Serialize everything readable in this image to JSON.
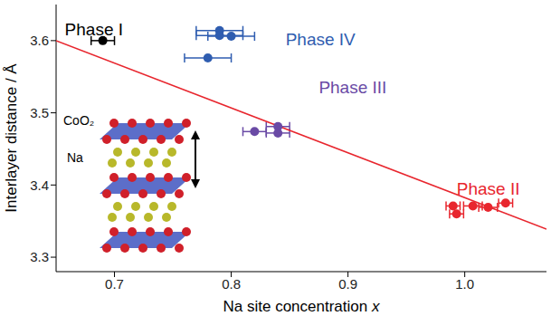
{
  "chart_data": {
    "type": "scatter",
    "xlabel": "Na site concentration x",
    "ylabel": "Interlayer distance / Å",
    "xlim": [
      0.65,
      1.07
    ],
    "ylim": [
      3.28,
      3.65
    ],
    "xticks": [
      0.7,
      0.8,
      0.9,
      {
        "value": 1,
        "label": "1.0"
      }
    ],
    "yticks": [
      3.3,
      3.4,
      3.5,
      3.6
    ],
    "grid": false,
    "series": [
      {
        "name": "Phase I",
        "color": "#000000",
        "marker": "circle",
        "x": [
          0.69
        ],
        "values": [
          3.6
        ],
        "xerr": [
          0.01
        ]
      },
      {
        "name": "Phase IV",
        "color": "#2f5db0",
        "marker": "circle",
        "x": [
          0.79,
          0.79,
          0.8,
          0.78
        ],
        "values": [
          3.614,
          3.607,
          3.606,
          3.576
        ],
        "xerr": [
          0.02,
          0.02,
          0.02,
          0.02
        ]
      },
      {
        "name": "Phase III",
        "color": "#6a4aa5",
        "marker": "circle",
        "x": [
          0.82,
          0.84,
          0.84
        ],
        "values": [
          3.474,
          3.481,
          3.472
        ],
        "xerr": [
          0.01,
          0.01,
          0.01
        ]
      },
      {
        "name": "Phase II",
        "color": "#e8262e",
        "marker": "circle",
        "x": [
          0.99,
          0.993,
          1.007,
          1.02,
          1.035
        ],
        "values": [
          3.371,
          3.36,
          3.371,
          3.369,
          3.375
        ],
        "xerr": [
          0.006,
          0.006,
          0.008,
          0.008,
          0.006
        ]
      }
    ],
    "fit": {
      "color": "#e8262e",
      "line_style": "solid",
      "x": [
        0.65,
        1.07
      ],
      "values": [
        3.6,
        3.339
      ]
    },
    "inset_labels": [
      "CoO₂",
      "Na"
    ]
  }
}
